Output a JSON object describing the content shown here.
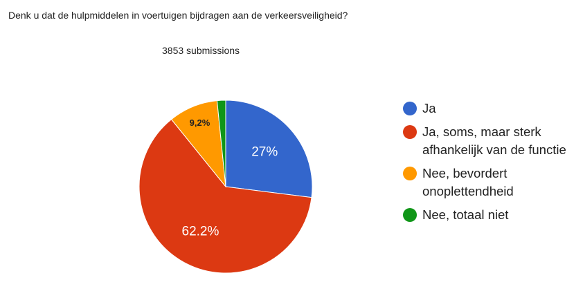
{
  "chart_data": {
    "type": "pie",
    "title": "Denk u dat de hulpmiddelen in voertuigen bijdragen aan de verkeersveiligheid?",
    "subtitle": "3853 submissions",
    "categories": [
      "Ja",
      "Ja, soms, maar sterk afhankelijk van de functie",
      "Nee, bevordert onoplettendheid",
      "Nee, totaal niet"
    ],
    "values": [
      27,
      62.2,
      9.2,
      1.6
    ],
    "value_labels": [
      "27%",
      "62.2%",
      "9,2%",
      null
    ],
    "colors": [
      "#3366cc",
      "#dc3912",
      "#ff9900",
      "#109618"
    ]
  }
}
